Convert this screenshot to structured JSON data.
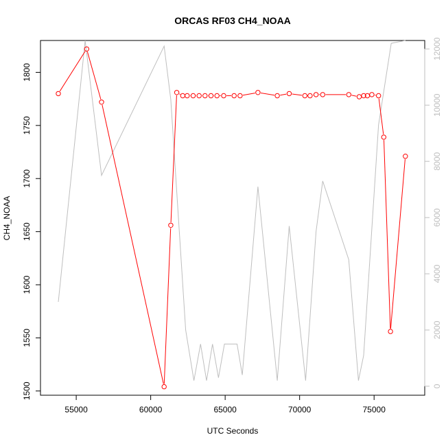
{
  "chart_data": {
    "type": "line",
    "title": "ORCAS RF03 CH4_NOAA",
    "xlabel": "UTC Seconds",
    "ylabel": "CH4_NOAA",
    "xlim": [
      52600,
      78400
    ],
    "ylim": [
      1496,
      1830
    ],
    "y2lim": [
      -320,
      12300
    ],
    "x_ticks": [
      55000,
      60000,
      65000,
      70000,
      75000
    ],
    "y_ticks": [
      1500,
      1550,
      1600,
      1650,
      1700,
      1750,
      1800
    ],
    "y2_ticks": [
      0,
      2000,
      4000,
      6000,
      8000,
      10000,
      12000
    ],
    "grid": false,
    "series": [
      {
        "axis": "left",
        "style": "line+points",
        "color": "#ff0000",
        "x": [
          53800,
          55700,
          56700,
          60900,
          61350,
          61750,
          62150,
          62450,
          62850,
          63250,
          63650,
          64050,
          64450,
          64900,
          65600,
          66000,
          67200,
          68500,
          69300,
          70350,
          70700,
          71100,
          71550,
          73300,
          74000,
          74300,
          74550,
          74850,
          75300,
          75650,
          76100,
          77100
        ],
        "y": [
          1780,
          1822,
          1772,
          1504,
          1656,
          1781,
          1778,
          1778,
          1778,
          1778,
          1778,
          1778,
          1778,
          1778,
          1778,
          1778,
          1781,
          1778,
          1780,
          1778,
          1778,
          1779,
          1779,
          1779,
          1777,
          1778,
          1778,
          1779,
          1778,
          1739,
          1556,
          1721
        ]
      },
      {
        "axis": "right",
        "style": "line",
        "color": "#bebebe",
        "x": [
          53800,
          55600,
          56700,
          60900,
          61350,
          62350,
          62900,
          63350,
          63750,
          64150,
          64550,
          64950,
          65800,
          66150,
          67200,
          68500,
          69300,
          70400,
          71100,
          71550,
          73300,
          73950,
          74300,
          75300,
          76150,
          77100
        ],
        "y": [
          3000,
          12300,
          7500,
          12100,
          10200,
          2000,
          200,
          1500,
          200,
          1500,
          300,
          1500,
          1500,
          400,
          7100,
          200,
          5700,
          200,
          5500,
          7300,
          4500,
          200,
          1100,
          9300,
          12200,
          12300
        ]
      }
    ]
  }
}
